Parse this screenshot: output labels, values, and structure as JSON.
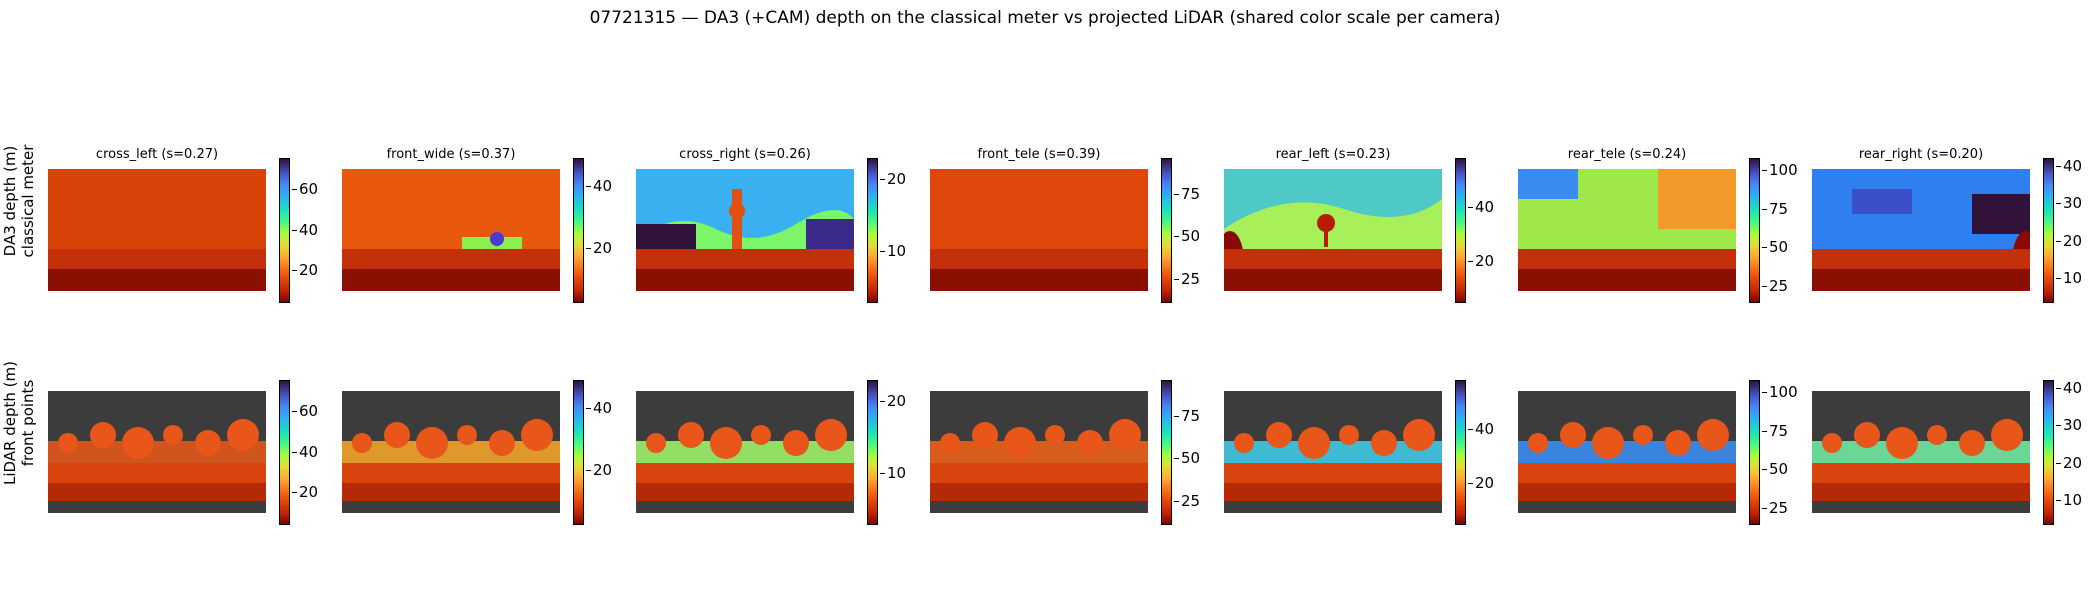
{
  "figure_title": "07721315 — DA3 (+CAM) depth on the classical meter vs projected LiDAR (shared color scale per camera)",
  "row_labels": [
    {
      "line1": "DA3 depth (m)",
      "line2": "classical meter"
    },
    {
      "line1": "LiDAR depth (m)",
      "line2": "front points"
    }
  ],
  "colormap": "turbo (reversed: near = dark red, far = dark purple)",
  "chart_data": [
    {
      "type": "heatmap",
      "row": "DA3 depth (m)",
      "camera": "cross_left",
      "title": "cross_left  (s=0.27)",
      "colorbar_ticks": [
        20,
        40,
        60
      ],
      "colorbar_range": [
        5,
        75
      ]
    },
    {
      "type": "heatmap",
      "row": "DA3 depth (m)",
      "camera": "front_wide",
      "title": "front_wide  (s=0.37)",
      "colorbar_ticks": [
        20,
        40
      ],
      "colorbar_range": [
        3,
        49
      ]
    },
    {
      "type": "heatmap",
      "row": "DA3 depth (m)",
      "camera": "cross_right",
      "title": "cross_right  (s=0.26)",
      "colorbar_ticks": [
        10,
        20
      ],
      "colorbar_range": [
        3,
        23
      ]
    },
    {
      "type": "heatmap",
      "row": "DA3 depth (m)",
      "camera": "front_tele",
      "title": "front_tele  (s=0.39)",
      "colorbar_ticks": [
        25,
        50,
        75
      ],
      "colorbar_range": [
        12,
        96
      ]
    },
    {
      "type": "heatmap",
      "row": "DA3 depth (m)",
      "camera": "rear_left",
      "title": "rear_left  (s=0.23)",
      "colorbar_ticks": [
        20,
        40
      ],
      "colorbar_range": [
        5,
        58
      ]
    },
    {
      "type": "heatmap",
      "row": "DA3 depth (m)",
      "camera": "rear_tele",
      "title": "rear_tele  (s=0.24)",
      "colorbar_ticks": [
        25,
        50,
        75,
        100
      ],
      "colorbar_range": [
        15,
        108
      ]
    },
    {
      "type": "heatmap",
      "row": "DA3 depth (m)",
      "camera": "rear_right",
      "title": "rear_right  (s=0.20)",
      "colorbar_ticks": [
        10,
        20,
        30,
        40
      ],
      "colorbar_range": [
        4,
        42
      ]
    },
    {
      "type": "heatmap",
      "row": "LiDAR depth (m)",
      "camera": "cross_left",
      "colorbar_ticks": [
        20,
        40,
        60
      ],
      "colorbar_range": [
        5,
        75
      ]
    },
    {
      "type": "heatmap",
      "row": "LiDAR depth (m)",
      "camera": "front_wide",
      "colorbar_ticks": [
        20,
        40
      ],
      "colorbar_range": [
        3,
        49
      ]
    },
    {
      "type": "heatmap",
      "row": "LiDAR depth (m)",
      "camera": "cross_right",
      "colorbar_ticks": [
        10,
        20
      ],
      "colorbar_range": [
        3,
        23
      ]
    },
    {
      "type": "heatmap",
      "row": "LiDAR depth (m)",
      "camera": "front_tele",
      "colorbar_ticks": [
        25,
        50,
        75
      ],
      "colorbar_range": [
        12,
        96
      ]
    },
    {
      "type": "heatmap",
      "row": "LiDAR depth (m)",
      "camera": "rear_left",
      "colorbar_ticks": [
        20,
        40
      ],
      "colorbar_range": [
        5,
        58
      ]
    },
    {
      "type": "heatmap",
      "row": "LiDAR depth (m)",
      "camera": "rear_tele",
      "colorbar_ticks": [
        25,
        50,
        75,
        100
      ],
      "colorbar_range": [
        15,
        108
      ]
    },
    {
      "type": "heatmap",
      "row": "LiDAR depth (m)",
      "camera": "rear_right",
      "colorbar_ticks": [
        10,
        20,
        30,
        40
      ],
      "colorbar_range": [
        4,
        42
      ]
    }
  ]
}
